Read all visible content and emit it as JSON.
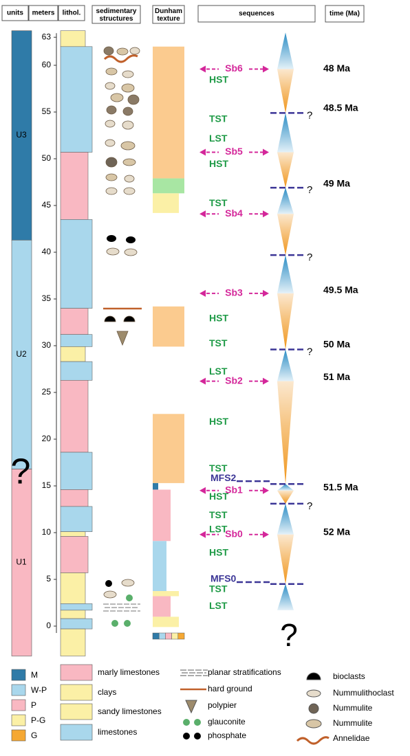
{
  "headers": [
    "units",
    "meters",
    "lithol.",
    "sedimentary structures",
    "Dunham texture",
    "sequences",
    "time (Ma)"
  ],
  "units": [
    {
      "label": "U3",
      "from": 41.3,
      "to": 63.7,
      "color": "#2f7ba8"
    },
    {
      "label": "U2",
      "from": 16.8,
      "to": 41.3,
      "color": "#a9d7ec"
    },
    {
      "label": "U1",
      "from": -3.2,
      "to": 16.8,
      "color": "#f9b8c2"
    }
  ],
  "unit_question": "?",
  "meter_ticks": [
    0,
    5,
    10,
    15,
    20,
    25,
    30,
    35,
    40,
    45,
    50,
    55,
    60,
    63
  ],
  "lithology": [
    {
      "from": 62,
      "to": 63.7,
      "type": 1
    },
    {
      "from": 50.7,
      "to": 62,
      "type": 3
    },
    {
      "from": 43.5,
      "to": 50.7,
      "type": 0
    },
    {
      "from": 34,
      "to": 43.5,
      "type": 3
    },
    {
      "from": 31.2,
      "to": 34,
      "type": 0
    },
    {
      "from": 29.9,
      "to": 31.2,
      "type": 3
    },
    {
      "from": 28.3,
      "to": 29.9,
      "type": 2
    },
    {
      "from": 26.3,
      "to": 28.3,
      "type": 3
    },
    {
      "from": 18.6,
      "to": 26.3,
      "type": 0
    },
    {
      "from": 14.6,
      "to": 18.6,
      "type": 3
    },
    {
      "from": 12.8,
      "to": 14.6,
      "type": 0
    },
    {
      "from": 10.1,
      "to": 12.8,
      "type": 3
    },
    {
      "from": 9.6,
      "to": 10.1,
      "type": 2
    },
    {
      "from": 5.7,
      "to": 9.6,
      "type": 0
    },
    {
      "from": 2.4,
      "to": 5.7,
      "type": 2
    },
    {
      "from": 1.7,
      "to": 2.4,
      "type": 3
    },
    {
      "from": 0.8,
      "to": 1.7,
      "type": 2
    },
    {
      "from": -0.3,
      "to": 0.8,
      "type": 3
    },
    {
      "from": -3.2,
      "to": -0.3,
      "type": 2
    }
  ],
  "dunham": [
    {
      "from": 47.9,
      "to": 62,
      "texture": 4
    },
    {
      "from": 46.3,
      "to": 47.9,
      "texture": 4,
      "color": "#a8e6a3"
    },
    {
      "from": 44.2,
      "to": 46.3,
      "texture": 3
    },
    {
      "from": 29.9,
      "to": 34.2,
      "texture": 4
    },
    {
      "from": 15.3,
      "to": 22.7,
      "texture": 4
    },
    {
      "from": 14.6,
      "to": 15.3,
      "texture": 0
    },
    {
      "from": 9.1,
      "to": 14.6,
      "texture": 2
    },
    {
      "from": 3.75,
      "to": 9.1,
      "texture": 1
    },
    {
      "from": 3.2,
      "to": 3.75,
      "texture": 3
    },
    {
      "from": 1.0,
      "to": 3.2,
      "texture": 2
    },
    {
      "from": -0.1,
      "to": 1.0,
      "texture": 3
    }
  ],
  "sequences": [
    {
      "label": "Sb6",
      "at": 59.6,
      "kind": "sb"
    },
    {
      "label": "HST",
      "at": 58.4,
      "kind": "st"
    },
    {
      "label": "TST",
      "at": 54.2,
      "kind": "st"
    },
    {
      "label": "LST",
      "at": 52.1,
      "kind": "st"
    },
    {
      "label": "Sb5",
      "at": 50.7,
      "kind": "sb"
    },
    {
      "label": "HST",
      "at": 49.4,
      "kind": "st"
    },
    {
      "label": "TST",
      "at": 45.2,
      "kind": "st"
    },
    {
      "label": "Sb4",
      "at": 44.1,
      "kind": "sb"
    },
    {
      "label": "Sb3",
      "at": 35.6,
      "kind": "sb"
    },
    {
      "label": "HST",
      "at": 32.9,
      "kind": "st"
    },
    {
      "label": "TST",
      "at": 30.2,
      "kind": "st"
    },
    {
      "label": "LST",
      "at": 27.2,
      "kind": "st"
    },
    {
      "label": "Sb2",
      "at": 26.2,
      "kind": "sb"
    },
    {
      "label": "HST",
      "at": 21.8,
      "kind": "st"
    },
    {
      "label": "TST",
      "at": 16.8,
      "kind": "st"
    },
    {
      "label": "MFS2",
      "at": 15.8,
      "kind": "mfs"
    },
    {
      "label": "Sb1",
      "at": 14.5,
      "kind": "sb"
    },
    {
      "label": "HST",
      "at": 13.8,
      "kind": "st"
    },
    {
      "label": "TST",
      "at": 11.8,
      "kind": "st"
    },
    {
      "label": "LST",
      "at": 10.3,
      "kind": "st"
    },
    {
      "label": "Sb0",
      "at": 9.8,
      "kind": "sb"
    },
    {
      "label": "HST",
      "at": 7.8,
      "kind": "st"
    },
    {
      "label": "MFS0",
      "at": 5.0,
      "kind": "mfs"
    },
    {
      "label": "TST",
      "at": 3.9,
      "kind": "st"
    },
    {
      "label": "LST",
      "at": 2.1,
      "kind": "st"
    }
  ],
  "times": [
    {
      "label": "48 Ma",
      "at": 59.6
    },
    {
      "label": "48.5 Ma",
      "at": 55.4
    },
    {
      "label": "49 Ma",
      "at": 47.3
    },
    {
      "label": "49.5 Ma",
      "at": 35.9
    },
    {
      "label": "50 Ma",
      "at": 30.1
    },
    {
      "label": "51 Ma",
      "at": 26.6
    },
    {
      "label": "51.5 Ma",
      "at": 14.8
    },
    {
      "label": "52 Ma",
      "at": 10.0
    }
  ],
  "boundaries": [
    {
      "at": 54.9,
      "mark": "?"
    },
    {
      "at": 46.9,
      "mark": "?"
    },
    {
      "at": 39.7,
      "mark": "?"
    },
    {
      "at": 29.6,
      "mark": "?"
    },
    {
      "at": 15.2
    },
    {
      "at": 13.1,
      "mark": "?"
    },
    {
      "at": 4.5
    }
  ],
  "cycles": [
    [
      63.5,
      59.6,
      54.9
    ],
    [
      54.9,
      50.7,
      46.9
    ],
    [
      46.9,
      44.1,
      39.7
    ],
    [
      39.7,
      35.6,
      29.6
    ],
    [
      29.6,
      26.2,
      15.2
    ],
    [
      15.2,
      14.5,
      13.1
    ],
    [
      13.1,
      9.8,
      4.5
    ],
    [
      4.5,
      1.7,
      1.7
    ]
  ],
  "bottom_question": "?",
  "legend": {
    "textures": [
      {
        "code": "M",
        "color": "#2f7ba8"
      },
      {
        "code": "W-P",
        "color": "#a9d7ec"
      },
      {
        "code": "P",
        "color": "#f9b8c2"
      },
      {
        "code": "P-G",
        "color": "#fbf0a6"
      },
      {
        "code": "G",
        "color": "#f5a833"
      }
    ],
    "lithology": [
      {
        "label": "marly limestones",
        "color": "#f9b8c2"
      },
      {
        "label": "clays",
        "color": "#fbf0a6"
      },
      {
        "label": "sandy limestones",
        "color": "#fbf0a6"
      },
      {
        "label": "limestones",
        "color": "#a9d7ec"
      }
    ],
    "symbols": [
      "planar stratifications",
      "hard ground",
      "polypier",
      "glauconite",
      "phosphate"
    ],
    "fossils": [
      "bioclasts",
      "Nummulithoclast",
      "Nummulite",
      "Nummulite",
      "Annelidae"
    ]
  }
}
